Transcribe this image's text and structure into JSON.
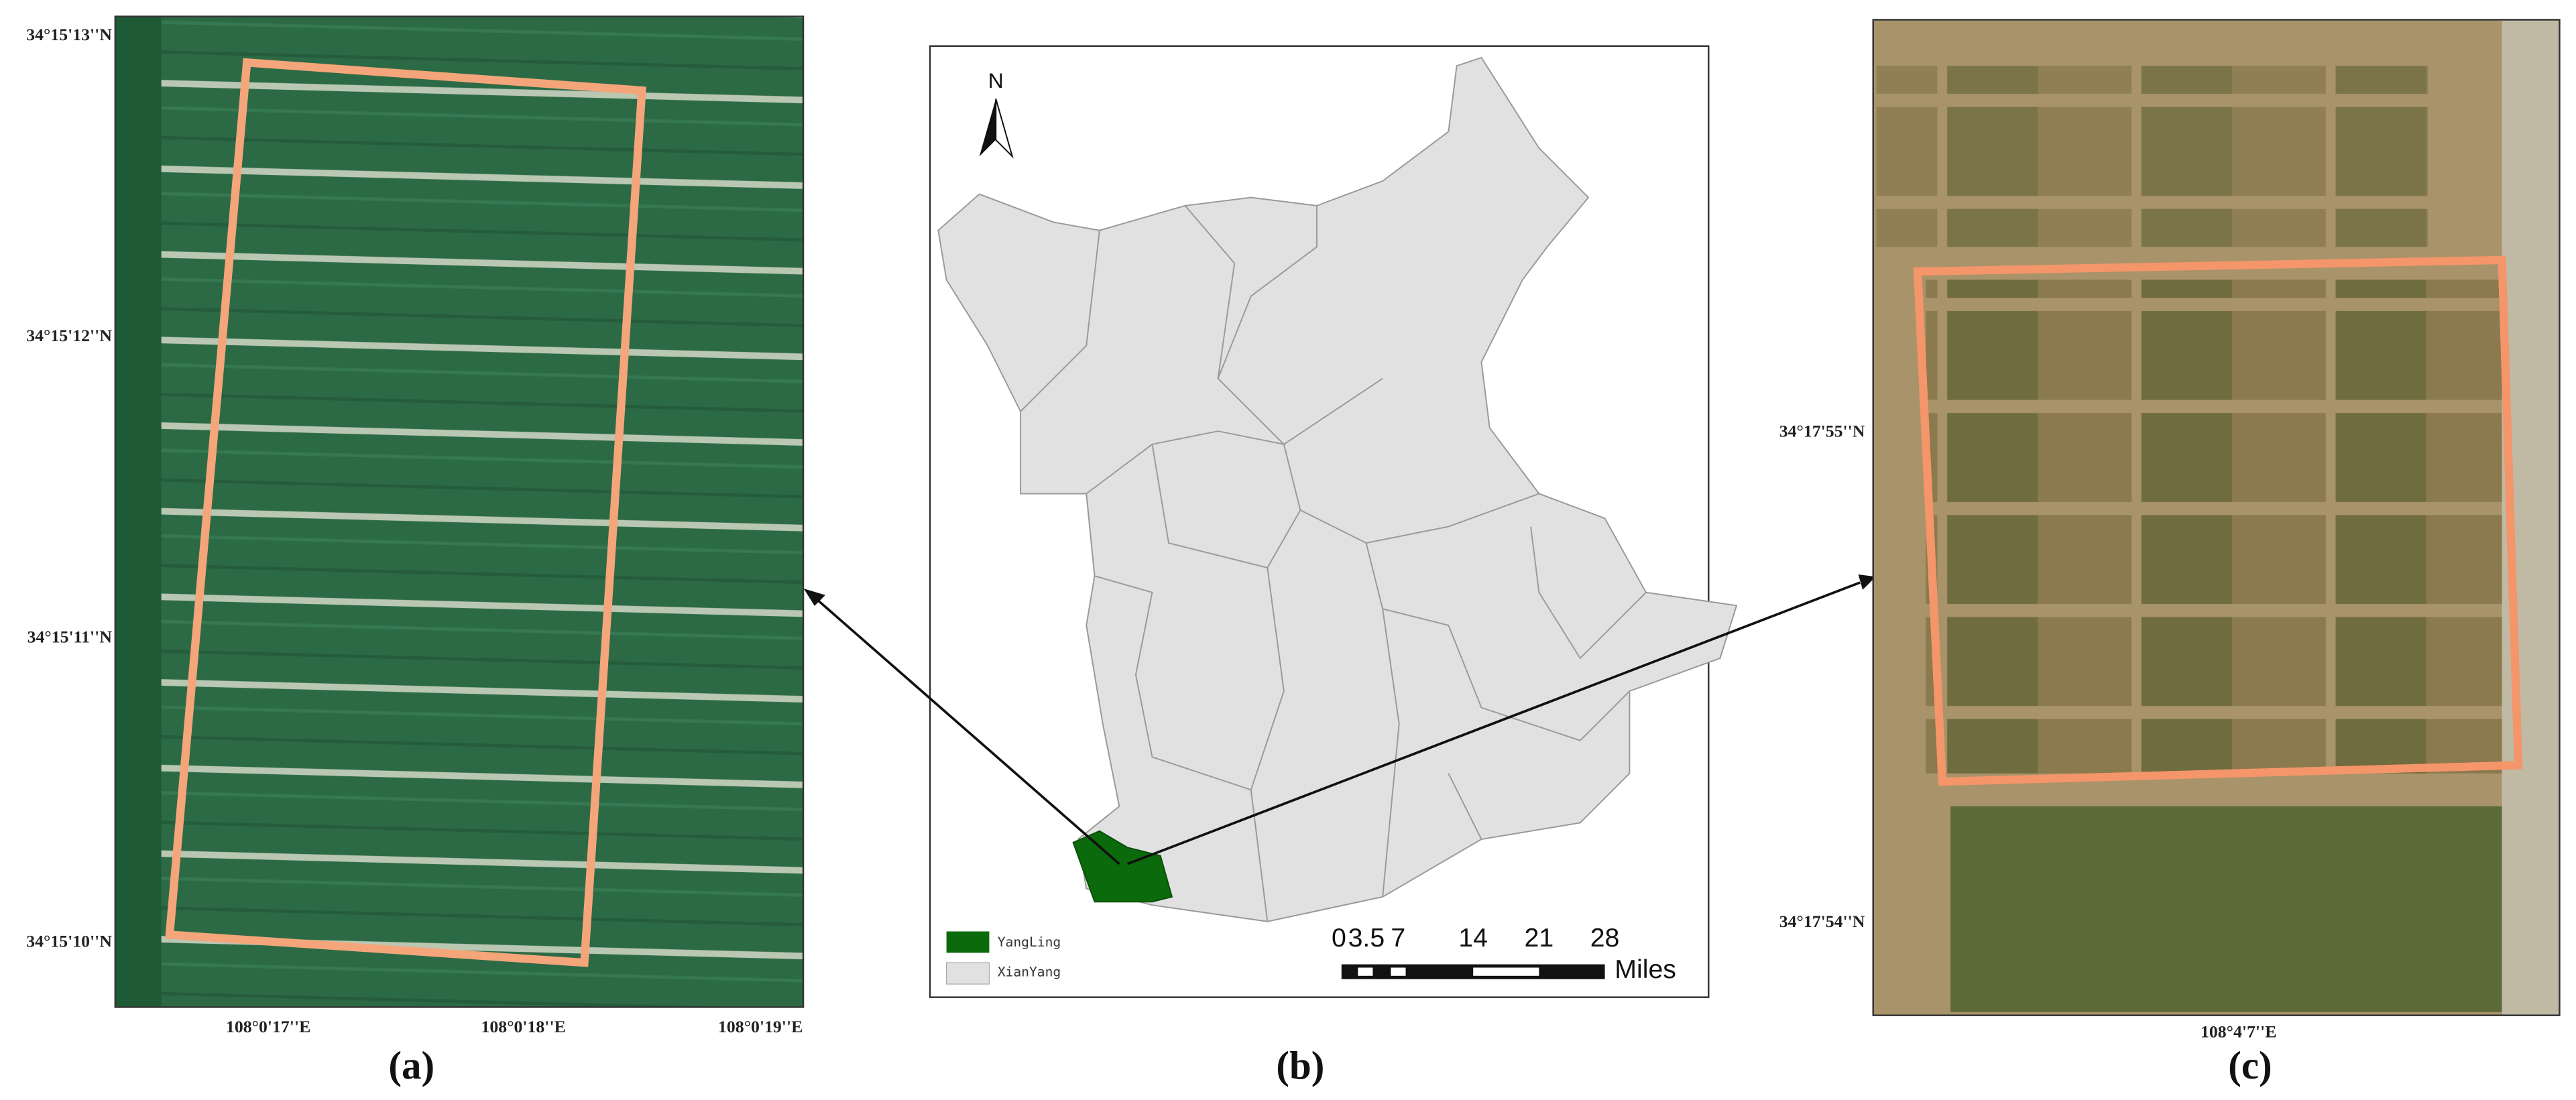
{
  "panel_a": {
    "lat_labels": [
      "34°15'13''N",
      "34°15'12''N",
      "34°15'11''N",
      "34°15'10''N"
    ],
    "lon_labels": [
      "108°0'17''E",
      "108°0'18''E",
      "108°0'19''E"
    ],
    "caption": "(a)"
  },
  "panel_b": {
    "north": "N",
    "legend": [
      "YangLing",
      "XianYang"
    ],
    "scale_ticks": [
      0,
      3.5,
      7,
      14,
      21,
      28
    ],
    "scale_unit": "Miles",
    "caption": "(b)"
  },
  "panel_c": {
    "lat_labels": [
      "34°17'55''N",
      "34°17'54''N"
    ],
    "lon_labels": [
      "108°4'7''E"
    ],
    "caption": "(c)"
  }
}
